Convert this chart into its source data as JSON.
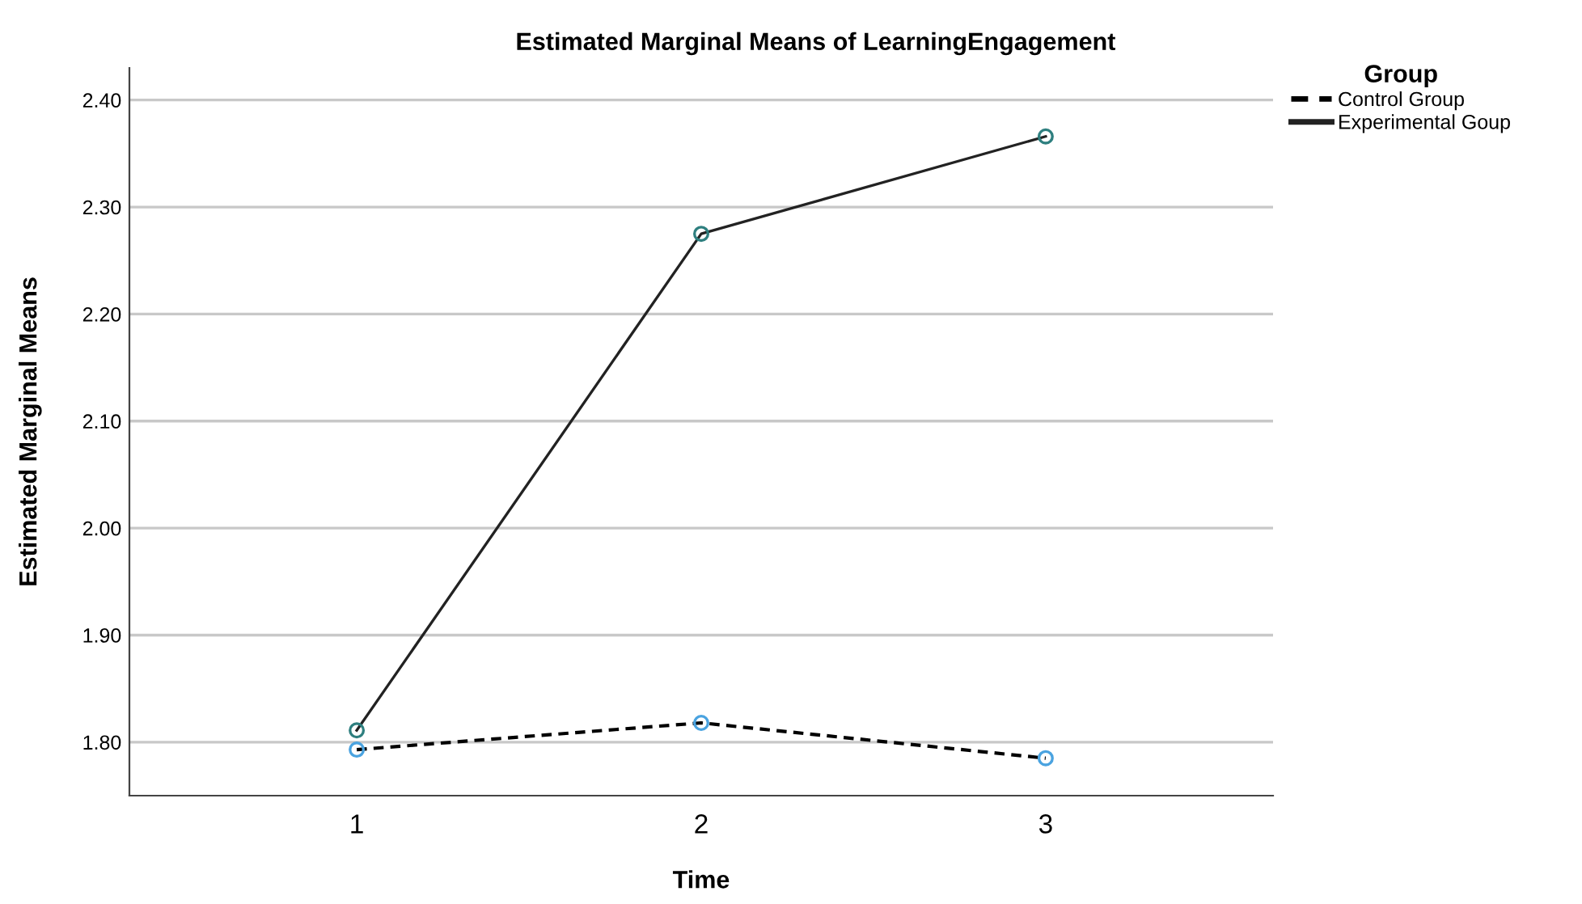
{
  "chart_data": {
    "type": "line",
    "title": "Estimated Marginal Means of LearningEngagement",
    "xlabel": "Time",
    "ylabel": "Estimated Marginal Means",
    "legend_title": "Group",
    "categories": [
      "1",
      "2",
      "3"
    ],
    "series": [
      {
        "name": "Control Group",
        "color": "#000000",
        "colors": [
          "#4aa3e0",
          "#4aa3e0",
          "#4aa3e0"
        ],
        "line_style": "dashed",
        "values": [
          1.793,
          1.818,
          1.785
        ]
      },
      {
        "name": "Experimental Goup",
        "color": "#222222",
        "colors": [
          "#2e7f7f",
          "#2e7f7f",
          "#2e7f7f"
        ],
        "line_style": "solid",
        "values": [
          1.811,
          2.275,
          2.366
        ]
      }
    ],
    "ylim": [
      1.75,
      2.43
    ],
    "yticks": [
      {
        "value": 1.8,
        "label": "1.80"
      },
      {
        "value": 1.9,
        "label": "1.90"
      },
      {
        "value": 2.0,
        "label": "2.00"
      },
      {
        "value": 2.1,
        "label": "2.10"
      },
      {
        "value": 2.2,
        "label": "2.20"
      },
      {
        "value": 2.3,
        "label": "2.30"
      },
      {
        "value": 2.4,
        "label": "2.40"
      }
    ],
    "grid": "y",
    "legend": "top right",
    "marker": "circle"
  }
}
